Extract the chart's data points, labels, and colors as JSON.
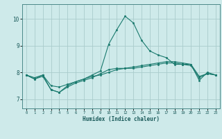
{
  "xlabel": "Humidex (Indice chaleur)",
  "background_color": "#ceeaea",
  "grid_color": "#aacccc",
  "line_color": "#1a7a6e",
  "spine_color": "#4a8888",
  "tick_color": "#1a5a5a",
  "x_ticks": [
    0,
    1,
    2,
    3,
    4,
    5,
    6,
    7,
    8,
    9,
    10,
    11,
    12,
    13,
    14,
    15,
    16,
    17,
    18,
    19,
    20,
    21,
    22,
    23
  ],
  "y_ticks": [
    7,
    8,
    9,
    10
  ],
  "ylim": [
    6.65,
    10.55
  ],
  "xlim": [
    -0.5,
    23.5
  ],
  "series1_x": [
    0,
    1,
    2,
    3,
    4,
    5,
    6,
    7,
    8,
    9,
    10,
    11,
    12,
    13,
    14,
    15,
    16,
    17,
    18,
    19,
    20,
    21,
    22,
    23
  ],
  "series1_y": [
    7.9,
    7.75,
    7.9,
    7.35,
    7.25,
    7.45,
    7.6,
    7.7,
    7.8,
    7.95,
    8.1,
    8.15,
    8.15,
    8.15,
    8.2,
    8.25,
    8.3,
    8.35,
    8.35,
    8.3,
    8.25,
    7.8,
    7.95,
    7.9
  ],
  "series2_x": [
    0,
    1,
    2,
    3,
    4,
    5,
    6,
    7,
    8,
    9,
    10,
    11,
    12,
    13,
    14,
    15,
    16,
    17,
    18,
    19,
    20,
    21,
    22,
    23
  ],
  "series2_y": [
    7.9,
    7.75,
    7.85,
    7.35,
    7.25,
    7.5,
    7.65,
    7.75,
    7.9,
    8.05,
    9.05,
    9.6,
    10.1,
    9.85,
    9.2,
    8.8,
    8.65,
    8.55,
    8.3,
    8.3,
    8.3,
    7.7,
    8.0,
    7.9
  ],
  "series3_x": [
    0,
    1,
    2,
    3,
    4,
    5,
    6,
    7,
    8,
    9,
    10,
    11,
    12,
    13,
    14,
    15,
    16,
    17,
    18,
    19,
    20,
    21,
    22,
    23
  ],
  "series3_y": [
    7.9,
    7.8,
    7.9,
    7.5,
    7.45,
    7.55,
    7.65,
    7.75,
    7.85,
    7.9,
    8.0,
    8.1,
    8.15,
    8.2,
    8.25,
    8.3,
    8.35,
    8.4,
    8.4,
    8.35,
    8.3,
    7.85,
    7.95,
    7.9
  ]
}
